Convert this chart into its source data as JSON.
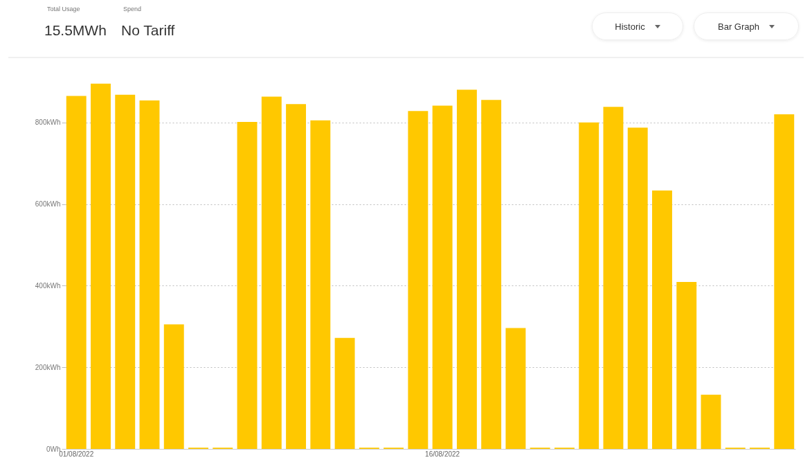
{
  "chart_data": {
    "type": "bar",
    "annotations": [
      "Total Usage",
      "15.5MWh",
      "Spend",
      "No Tariff",
      "Historic",
      "Bar Graph"
    ],
    "categories": [
      "01/08/2022",
      null,
      null,
      null,
      null,
      null,
      null,
      null,
      null,
      null,
      null,
      null,
      null,
      null,
      null,
      "16/08/2022",
      null,
      null,
      null,
      null,
      null,
      null,
      null,
      null,
      null,
      null,
      null,
      null,
      null,
      null
    ],
    "values": [
      865,
      895,
      868,
      854,
      305,
      3,
      3,
      801,
      863,
      845,
      805,
      272,
      3,
      3,
      828,
      841,
      880,
      855,
      296,
      3,
      3,
      800,
      838,
      787,
      633,
      409,
      133,
      3,
      3,
      820
    ],
    "color": "#ffc800",
    "ylim": [
      0,
      920
    ],
    "yticks": [
      {
        "value": 0,
        "label": "0Wh"
      },
      {
        "value": 200,
        "label": "200kWh"
      },
      {
        "value": 400,
        "label": "400kWh"
      },
      {
        "value": 600,
        "label": "600kWh"
      },
      {
        "value": 800,
        "label": "800kWh"
      }
    ],
    "grid": "y"
  }
}
